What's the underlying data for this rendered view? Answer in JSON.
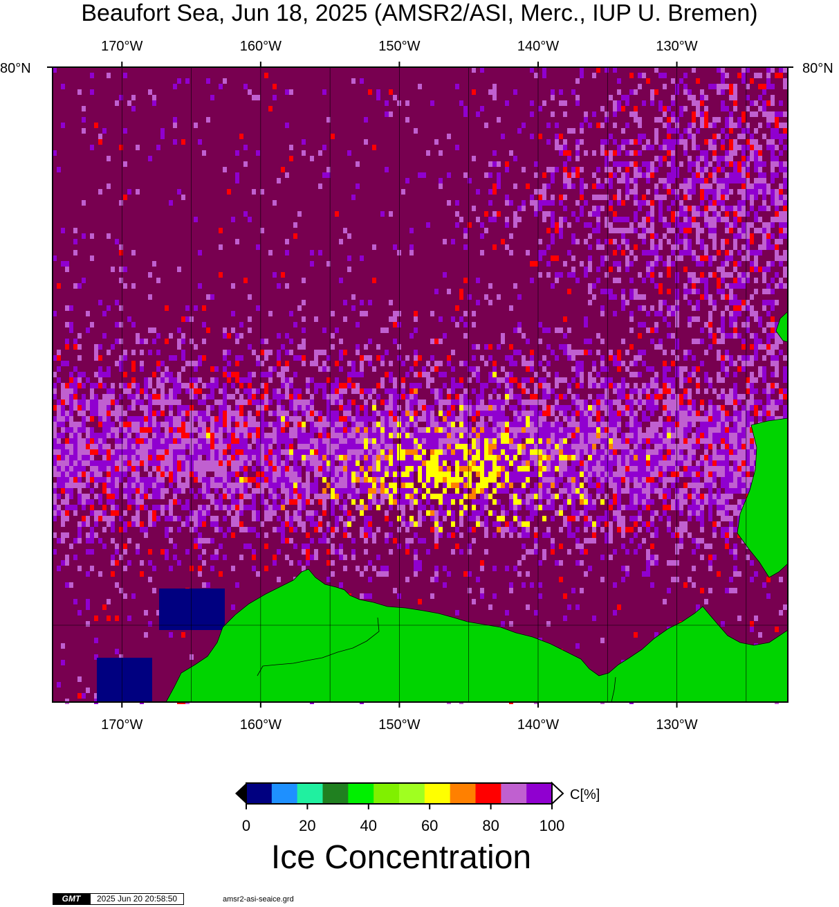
{
  "title": "Beaufort Sea, Jun 18, 2025 (AMSR2/ASI, Merc., IUP U. Bremen)",
  "map": {
    "lon_labels": [
      "170°W",
      "160°W",
      "150°W",
      "140°W",
      "130°W"
    ],
    "lon_values": [
      -170,
      -160,
      -150,
      -140,
      -130
    ],
    "lon_range": [
      -175,
      -122
    ],
    "lat_label": "80°N",
    "colors": {
      "land": "#00d400",
      "ocean_full_ice": "#780050",
      "frame": "#000000"
    }
  },
  "colorbar": {
    "title": "Ice Concentration",
    "unit": "C[%]",
    "tick_labels": [
      "0",
      "20",
      "40",
      "60",
      "80",
      "100"
    ],
    "range": [
      0,
      100
    ],
    "colors": [
      "#000080",
      "#1e90ff",
      "#20f0a0",
      "#208020",
      "#00f000",
      "#80f000",
      "#a0ff20",
      "#ffff00",
      "#ff8000",
      "#ff0000",
      "#c060d0",
      "#9000d0"
    ]
  },
  "footer": {
    "logo": "GMT",
    "timestamp": "2025 Jun 20 20:58:50",
    "filename": "amsr2-asi-seaice.grd"
  }
}
